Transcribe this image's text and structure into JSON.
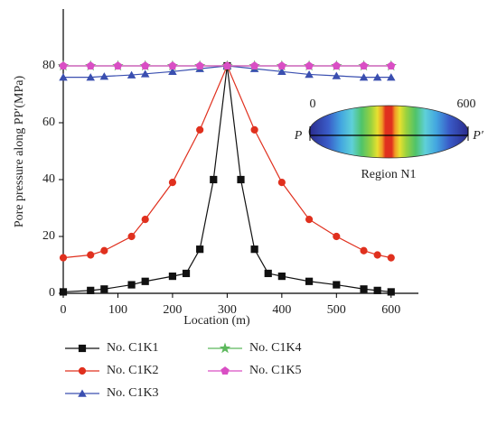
{
  "chart_data": {
    "type": "line",
    "x_label": "Location (m)",
    "y_label": "Pore pressure along PP′(MPa)",
    "xlim": [
      0,
      650
    ],
    "xticks": [
      0,
      100,
      200,
      300,
      400,
      500,
      600
    ],
    "ylim": [
      0,
      100
    ],
    "yticks": [
      0,
      20,
      40,
      60,
      80
    ],
    "series": [
      {
        "name": "No. C1K1",
        "color": "#111111",
        "marker": "square",
        "x": [
          0,
          50,
          75,
          125,
          150,
          200,
          225,
          250,
          275,
          300,
          325,
          350,
          375,
          400,
          450,
          500,
          550,
          575,
          600
        ],
        "values": [
          0.5,
          1,
          1.5,
          3,
          4.2,
          6,
          7,
          15.5,
          40,
          80,
          40,
          15.5,
          7,
          6,
          4.2,
          3,
          1.5,
          1,
          0.5
        ]
      },
      {
        "name": "No. C1K2",
        "color": "#e0301e",
        "marker": "circle",
        "x": [
          0,
          50,
          75,
          125,
          150,
          200,
          250,
          300,
          350,
          400,
          450,
          500,
          550,
          575,
          600
        ],
        "values": [
          12.5,
          13.5,
          15,
          20,
          26,
          39,
          57.5,
          80,
          57.5,
          39,
          26,
          20,
          15,
          13.5,
          12.5
        ]
      },
      {
        "name": "No. C1K3",
        "color": "#3a4fb0",
        "marker": "triangle",
        "x": [
          0,
          50,
          75,
          125,
          150,
          200,
          250,
          300,
          350,
          400,
          450,
          500,
          550,
          575,
          600
        ],
        "values": [
          76,
          76,
          76.3,
          76.8,
          77.2,
          78,
          79,
          80,
          79,
          78,
          77,
          76.5,
          76,
          76,
          76
        ]
      },
      {
        "name": "No. C1K4",
        "color": "#5cb85c",
        "marker": "star",
        "x": [
          0,
          50,
          100,
          150,
          200,
          250,
          300,
          350,
          400,
          450,
          500,
          550,
          600
        ],
        "values": [
          80,
          80,
          80,
          80,
          80,
          80,
          80,
          80,
          80,
          80,
          80,
          80,
          80
        ]
      },
      {
        "name": "No. C1K5",
        "color": "#d94fc4",
        "marker": "pentagon",
        "x": [
          0,
          50,
          100,
          150,
          200,
          250,
          300,
          350,
          400,
          450,
          500,
          550,
          600
        ],
        "values": [
          80,
          80,
          80,
          80,
          80,
          80,
          80,
          80,
          80,
          80,
          80,
          80,
          80
        ]
      }
    ],
    "inset": {
      "title": "Region N1",
      "start_label": "P",
      "end_label": "P′",
      "scale_start": "0",
      "scale_end": "600"
    }
  }
}
